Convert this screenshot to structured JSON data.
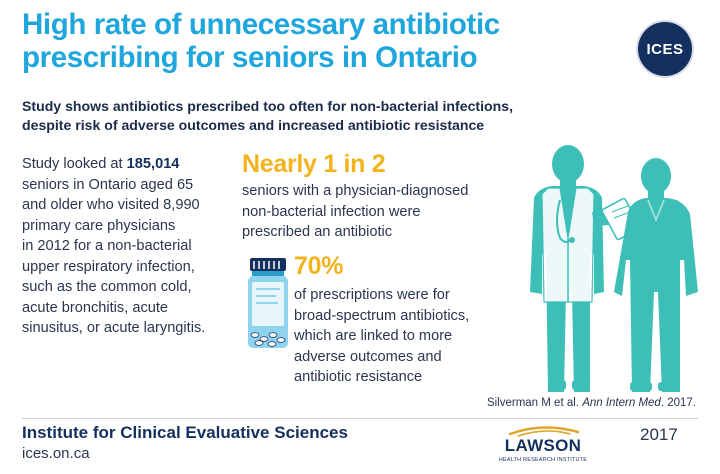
{
  "title": {
    "line1": "High rate of unnecessary antibiotic",
    "line2": "prescribing for seniors in Ontario"
  },
  "logo": {
    "text": "ICES"
  },
  "subtitle": {
    "line1": "Study shows antibiotics prescribed too often for non-bacterial infections,",
    "line2": "despite risk of adverse outcomes and increased antibiotic resistance"
  },
  "study": {
    "intro": "Study looked at ",
    "count": "185,014",
    "lines": [
      "seniors in Ontario aged 65",
      "and older who visited 8,990",
      "primary care physicians",
      "in 2012 for a non-bacterial",
      "upper respiratory infection,",
      "such as the common cold,",
      "acute bronchitis, acute",
      "sinusitus, or acute laryngitis."
    ]
  },
  "stat1": {
    "headline": "Nearly 1 in 2",
    "lines": [
      "seniors with a physician-diagnosed",
      "non-bacterial infection were",
      "prescribed an antibiotic"
    ]
  },
  "stat2": {
    "headline": "70%",
    "lines": [
      "of prescriptions were for",
      "broad-spectrum antibiotics,",
      "which are linked to more",
      "adverse outcomes and",
      "antibiotic resistance"
    ]
  },
  "citation": {
    "authors": "Silverman M et al. ",
    "journal": "Ann Intern Med",
    "year": ". 2017."
  },
  "footer": {
    "org_name": "Institute for Clinical Evaluative Sciences",
    "url": "ices.on.ca",
    "partner_name": "LAWSON",
    "partner_tagline": "HEALTH RESEARCH INSTITUTE",
    "year": "2017"
  },
  "colors": {
    "title": "#1fa6dc",
    "accent": "#f2b31c",
    "navy": "#14305f",
    "figure": "#3dbfb8"
  },
  "icons": [
    "ices-logo",
    "pill-bottle-icon",
    "doctor-and-patient-illustration",
    "lawson-logo"
  ]
}
